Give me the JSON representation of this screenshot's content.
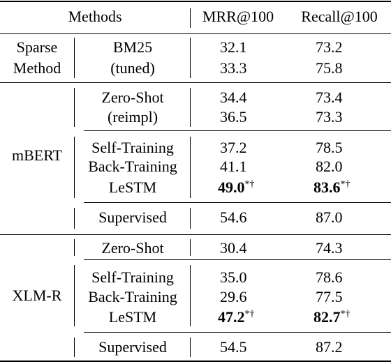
{
  "header": {
    "methods": "Methods",
    "mrr": "MRR@100",
    "recall": "Recall@100"
  },
  "sparse": {
    "group_line1": "Sparse",
    "group_line2": "Method",
    "rows": [
      {
        "name": "BM25",
        "mrr": "32.1",
        "recall": "73.2"
      },
      {
        "name": "(tuned)",
        "mrr": "33.3",
        "recall": "75.8"
      }
    ]
  },
  "mbert": {
    "group": "mBERT",
    "zero_shot": [
      {
        "name": "Zero-Shot",
        "mrr": "34.4",
        "recall": "73.4"
      },
      {
        "name": "(reimpl)",
        "mrr": "36.5",
        "recall": "73.3"
      }
    ],
    "training": [
      {
        "name": "Self-Training",
        "mrr": "37.2",
        "recall": "78.5"
      },
      {
        "name": "Back-Training",
        "mrr": "41.1",
        "recall": "82.0"
      },
      {
        "name": "LeSTM",
        "mrr": "49.0",
        "mrr_mark": "*†",
        "recall": "83.6",
        "recall_mark": "*†"
      }
    ],
    "supervised": {
      "name": "Supervised",
      "mrr": "54.6",
      "recall": "87.0"
    }
  },
  "xlmr": {
    "group": "XLM-R",
    "zero_shot": {
      "name": "Zero-Shot",
      "mrr": "30.4",
      "recall": "74.3"
    },
    "training": [
      {
        "name": "Self-Training",
        "mrr": "35.0",
        "recall": "78.6"
      },
      {
        "name": "Back-Training",
        "mrr": "29.6",
        "recall": "77.5"
      },
      {
        "name": "LeSTM",
        "mrr": "47.2",
        "mrr_mark": "*†",
        "recall": "82.7",
        "recall_mark": "*†"
      }
    ],
    "supervised": {
      "name": "Supervised",
      "mrr": "54.5",
      "recall": "87.2"
    }
  }
}
